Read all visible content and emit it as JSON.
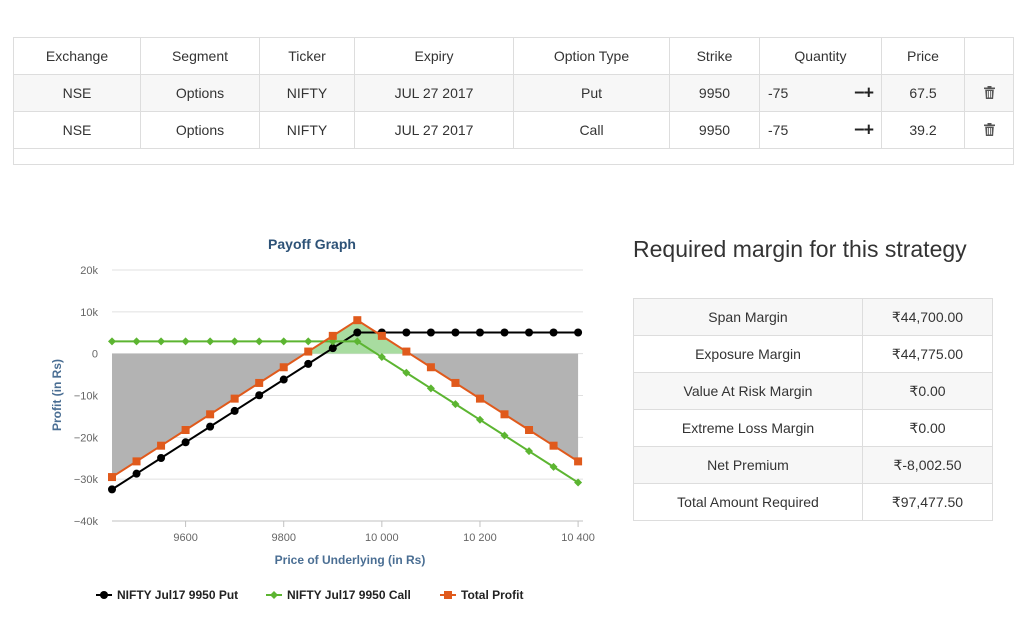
{
  "positions_table": {
    "headers": [
      "Exchange",
      "Segment",
      "Ticker",
      "Expiry",
      "Option Type",
      "Strike",
      "Quantity",
      "Price",
      ""
    ],
    "rows": [
      {
        "exchange": "NSE",
        "segment": "Options",
        "ticker": "NIFTY",
        "expiry": "JUL 27 2017",
        "option_type": "Put",
        "strike": "9950",
        "quantity": "-75",
        "price": "67.5"
      },
      {
        "exchange": "NSE",
        "segment": "Options",
        "ticker": "NIFTY",
        "expiry": "JUL 27 2017",
        "option_type": "Call",
        "strike": "9950",
        "quantity": "-75",
        "price": "39.2"
      }
    ],
    "minus_label": "−",
    "plus_label": "+"
  },
  "chart_data": {
    "type": "line",
    "title": "Payoff Graph",
    "xlabel": "Price of Underlying (in Rs)",
    "ylabel": "Profit (in Rs)",
    "xlim": [
      9450,
      10410
    ],
    "ylim": [
      -40000,
      20000
    ],
    "x_ticks": [
      9600,
      9800,
      10000,
      10200,
      10400
    ],
    "x_tick_labels": [
      "9600",
      "9800",
      "10 000",
      "10 200",
      "10 400"
    ],
    "y_ticks": [
      20000,
      10000,
      0,
      -10000,
      -20000,
      -30000,
      -40000
    ],
    "y_tick_labels": [
      "20k",
      "10k",
      "0",
      "−10k",
      "−20k",
      "−30k",
      "−40k"
    ],
    "grid": "horizontal",
    "legend_position": "bottom",
    "x": [
      9450,
      9500,
      9550,
      9600,
      9650,
      9700,
      9750,
      9800,
      9850,
      9900,
      9950,
      10000,
      10050,
      10100,
      10150,
      10200,
      10250,
      10300,
      10350,
      10400
    ],
    "series": [
      {
        "name": "NIFTY Jul17 9950 Put",
        "color": "#000000",
        "marker": "circle",
        "values": [
          -32438,
          -28688,
          -24938,
          -21188,
          -17438,
          -13688,
          -9938,
          -6188,
          -2438,
          1313,
          5063,
          5063,
          5063,
          5063,
          5063,
          5063,
          5063,
          5063,
          5063,
          5063
        ]
      },
      {
        "name": "NIFTY Jul17 9950 Call",
        "color": "#5cb531",
        "marker": "diamond",
        "values": [
          2940,
          2940,
          2940,
          2940,
          2940,
          2940,
          2940,
          2940,
          2940,
          2940,
          2940,
          -810,
          -4560,
          -8310,
          -12060,
          -15810,
          -19560,
          -23310,
          -27060,
          -30810
        ]
      },
      {
        "name": "Total Profit",
        "color": "#e05a1c",
        "marker": "square",
        "values": [
          -29498,
          -25748,
          -21998,
          -18248,
          -14498,
          -10748,
          -6998,
          -3248,
          502,
          4253,
          8003,
          4253,
          503,
          -3247,
          -6997,
          -10747,
          -14497,
          -18247,
          -21997,
          -25747
        ]
      }
    ],
    "fill_positive_color": "#a8dca0",
    "fill_negative_color": "#b3b3b3"
  },
  "margin_panel": {
    "title": "Required margin for this strategy",
    "rows": [
      {
        "label": "Span Margin",
        "value": "₹44,700.00"
      },
      {
        "label": "Exposure Margin",
        "value": "₹44,775.00"
      },
      {
        "label": "Value At Risk Margin",
        "value": "₹0.00"
      },
      {
        "label": "Extreme Loss Margin",
        "value": "₹0.00"
      },
      {
        "label": "Net Premium",
        "value": "₹-8,002.50"
      },
      {
        "label": "Total Amount Required",
        "value": "₹97,477.50"
      }
    ]
  },
  "icons": {
    "delete": "trash-icon"
  }
}
